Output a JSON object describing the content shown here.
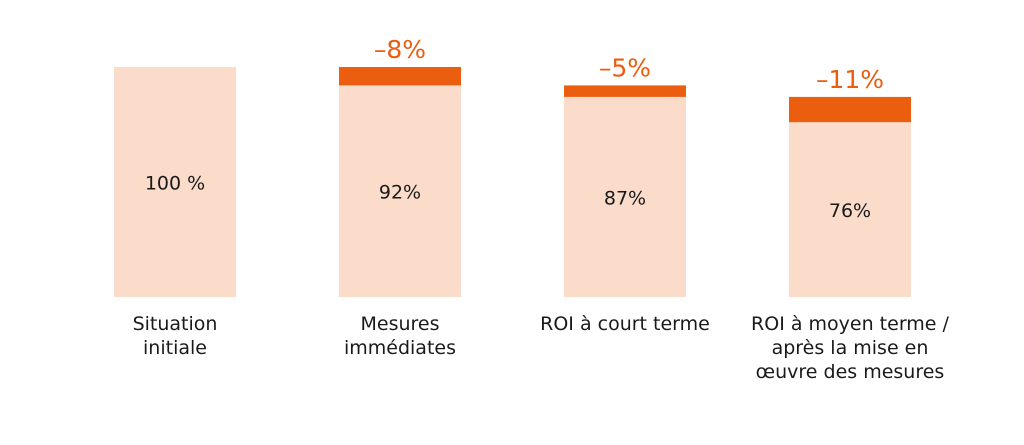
{
  "chart_data": {
    "type": "bar",
    "categories": [
      "Situation initiale",
      "Mesures immédiates",
      "ROI à court terme",
      "ROI à moyen terme / après la mise en œuvre des mesures"
    ],
    "series": [
      {
        "color": "#fbdccb",
        "values": [
          100,
          92,
          87,
          76
        ],
        "value_labels": [
          "100 %",
          "92%",
          "87%",
          "76%"
        ]
      },
      {
        "color": "#eb5e0f",
        "values": [
          null,
          -8,
          -5,
          -11
        ],
        "value_labels": [
          null,
          "–8%",
          "–5%",
          "–11%"
        ]
      }
    ]
  }
}
